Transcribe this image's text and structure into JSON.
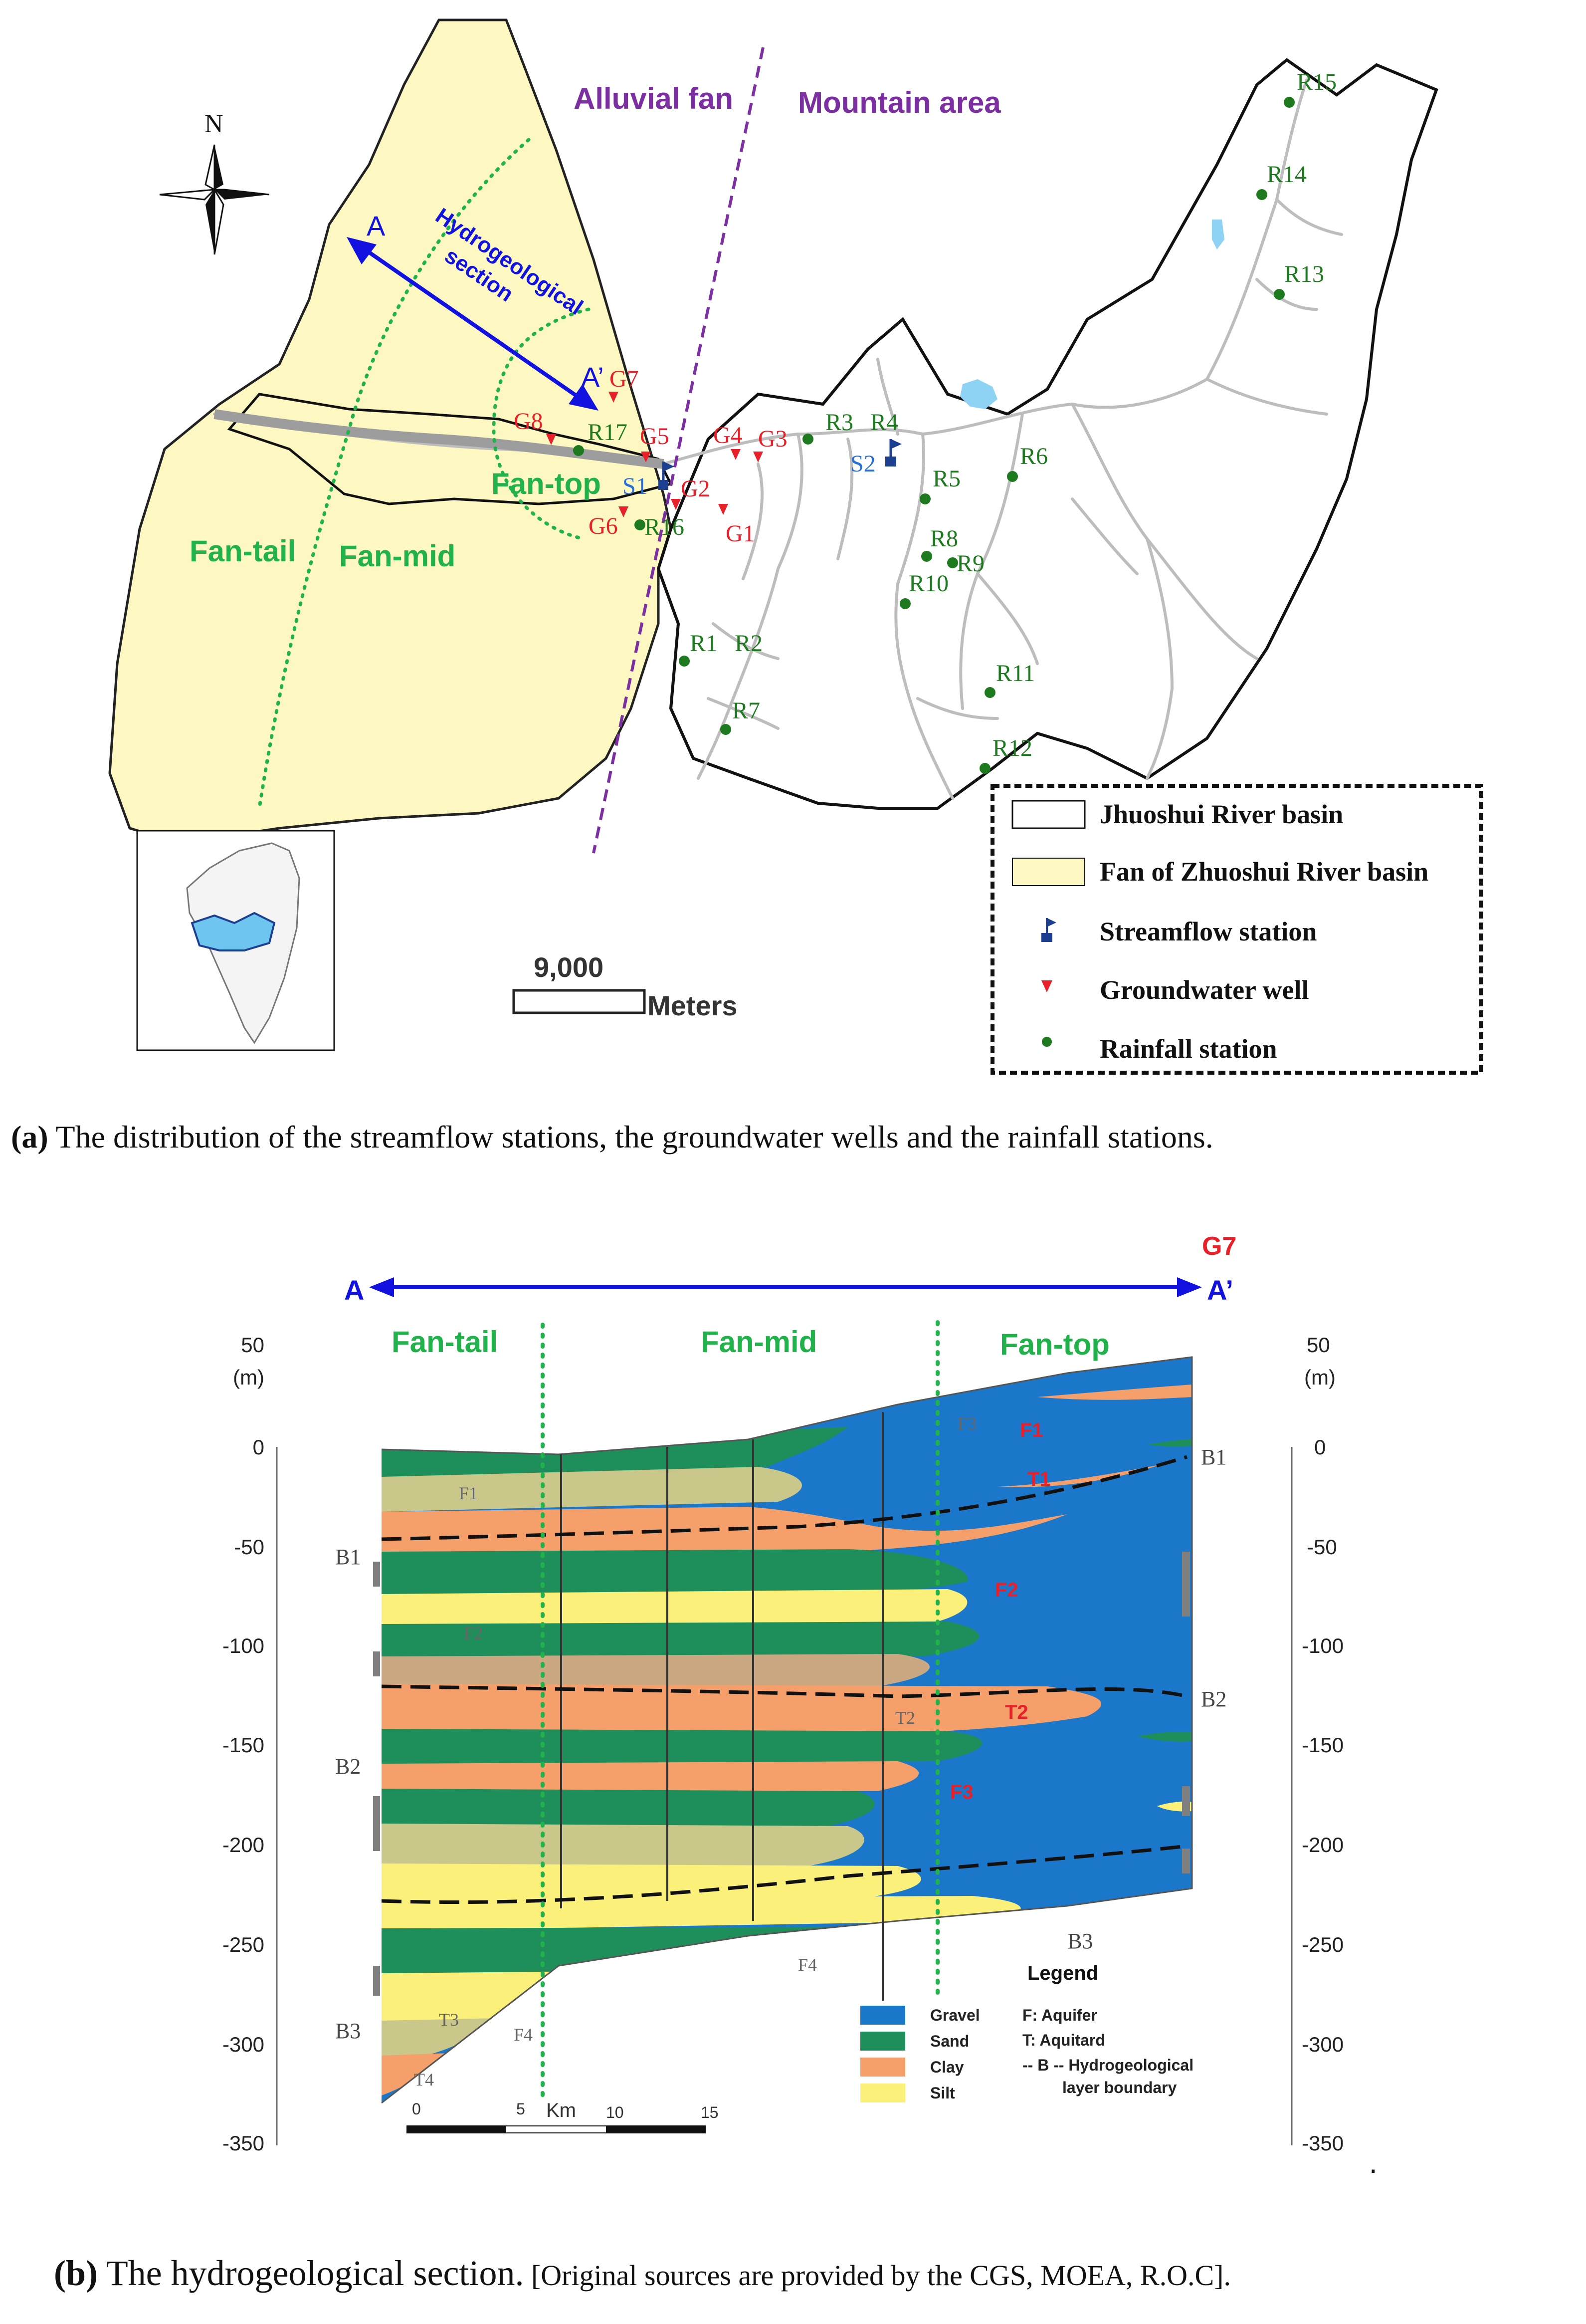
{
  "map": {
    "zones": {
      "alluvial_fan": "Alluvial fan",
      "mountain_area": "Mountain area",
      "fan_tail": "Fan-tail",
      "fan_mid": "Fan-mid",
      "fan_top": "Fan-top"
    },
    "north_label": "N",
    "section_line": {
      "start": "A",
      "end": "A’",
      "label_line1": "Hydrogeological",
      "label_line2": "section"
    },
    "streamflow_stations": [
      "S1",
      "S2"
    ],
    "groundwater_wells": [
      "G1",
      "G2",
      "G3",
      "G4",
      "G5",
      "G6",
      "G7",
      "G8"
    ],
    "rainfall_stations": [
      "R1",
      "R2",
      "R3",
      "R4",
      "R5",
      "R6",
      "R7",
      "R8",
      "R9",
      "R10",
      "R11",
      "R12",
      "R13",
      "R14",
      "R15",
      "R16",
      "R17"
    ],
    "scale": {
      "value": "9,000",
      "unit": "Meters"
    },
    "legend": [
      {
        "key": "basin",
        "label": "Jhuoshui River basin"
      },
      {
        "key": "fan",
        "label": "Fan of Zhuoshui River basin"
      },
      {
        "key": "streamflow",
        "label": "Streamflow station"
      },
      {
        "key": "well",
        "label": "Groundwater well"
      },
      {
        "key": "rain",
        "label": "Rainfall station"
      }
    ],
    "colors": {
      "fan": "#fdf8c2",
      "well": "#e8202a",
      "rain": "#1e7a1e",
      "stream": "#1d3f8f",
      "zone_line": "#7b2fa0",
      "fan_label": "#22b24c"
    }
  },
  "caption_a": {
    "tag": "(a)",
    "text": " The distribution of the streamflow stations, the groundwater wells and the rainfall stations."
  },
  "section": {
    "well_label": "G7",
    "start": "A",
    "end": "A’",
    "zones": [
      "Fan-tail",
      "Fan-mid",
      "Fan-top"
    ],
    "y_unit": "(m)",
    "y_ticks": [
      50,
      0,
      -50,
      -100,
      -150,
      -200,
      -250,
      -300,
      -350
    ],
    "left_boundaries": [
      "B1",
      "B2",
      "B3"
    ],
    "right_boundaries": [
      "B1",
      "B2",
      "B3"
    ],
    "red_labels": [
      "F1",
      "T1",
      "F2",
      "T2",
      "F3"
    ],
    "gray_labels": [
      "F1",
      "F2",
      "T2",
      "F3",
      "F4",
      "T3",
      "T4",
      "F4"
    ],
    "km_label": "Km",
    "km_ticks": [
      "0",
      "5",
      "10",
      "15"
    ],
    "legend_title": "Legend",
    "legend_materials": [
      {
        "name": "Gravel",
        "color": "#1a77c9"
      },
      {
        "name": "Sand",
        "color": "#1e8f5a"
      },
      {
        "name": "Clay",
        "color": "#f5a06a"
      },
      {
        "name": "Silt",
        "color": "#fbf07a"
      }
    ],
    "legend_notes": [
      "F: Aquifer",
      "T: Aquitard",
      "-- B -- Hydrogeological",
      "layer boundary"
    ],
    "dot": "."
  },
  "caption_b": {
    "tag": "(b)",
    "text": " The hydrogeological section.",
    "source": " [Original sources are provided by the CGS, MOEA, R.O.C]."
  }
}
